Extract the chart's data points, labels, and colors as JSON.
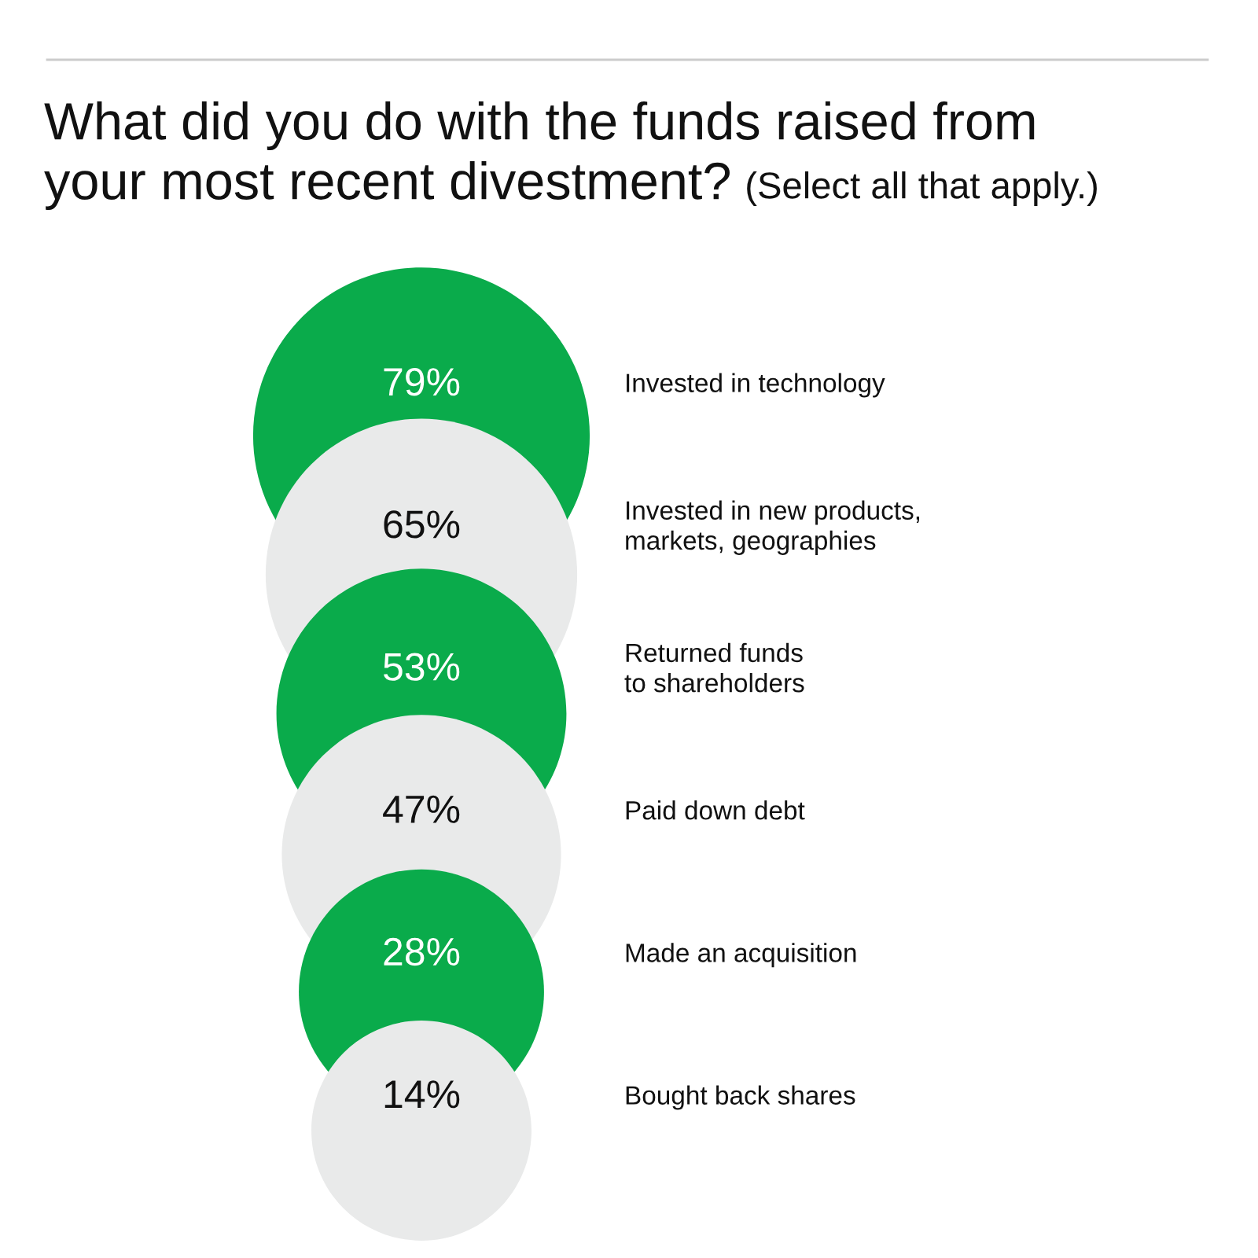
{
  "chart_data": {
    "type": "other",
    "title": "What did you do with the funds raised from your most recent divestment?",
    "subtitle": "(Select all that apply.)",
    "categories": [
      "Invested in technology",
      "Invested in new products,\nmarkets, geographies",
      "Returned funds\nto shareholders",
      "Paid down debt",
      "Made an acquisition",
      "Bought back shares"
    ],
    "values": [
      79,
      65,
      53,
      47,
      28,
      14
    ],
    "value_labels": [
      "79%",
      "65%",
      "53%",
      "47%",
      "28%",
      "14%"
    ],
    "colors": [
      "#0aab4b",
      "#e9eaea",
      "#0aab4b",
      "#e9eaea",
      "#0aab4b",
      "#e9eaea"
    ]
  }
}
